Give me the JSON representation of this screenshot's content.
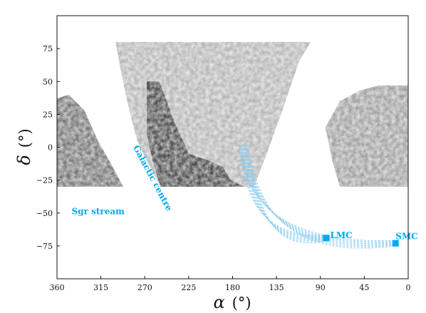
{
  "chart_data": {
    "type": "heatmap",
    "title": "",
    "xlabel": {
      "symbol": "α",
      "unit": "(°)"
    },
    "ylabel": {
      "symbol": "δ",
      "unit": "(°)"
    },
    "xlim": [
      360,
      0
    ],
    "ylim": [
      -100,
      100
    ],
    "x_ticks": [
      "360",
      "315",
      "270",
      "225",
      "180",
      "135",
      "90",
      "45",
      "0"
    ],
    "y_ticks": [
      "75",
      "50",
      "25",
      "0",
      "−25",
      "−50",
      "−75"
    ],
    "grid": false,
    "colors": {
      "density": "#111111",
      "accent": "#00aaee",
      "orbit": "#88ccee"
    },
    "regions": [
      {
        "name": "footprint-left",
        "polygon": [
          [
            360,
            37
          ],
          [
            348,
            40
          ],
          [
            332,
            28
          ],
          [
            318,
            5
          ],
          [
            305,
            -12
          ],
          [
            292,
            -30
          ],
          [
            360,
            -30
          ]
        ],
        "level": 0.65
      },
      {
        "name": "footprint-main",
        "polygon": [
          [
            300,
            80
          ],
          [
            100,
            80
          ],
          [
            112,
            65
          ],
          [
            128,
            30
          ],
          [
            145,
            -5
          ],
          [
            158,
            -30
          ],
          [
            254,
            -30
          ],
          [
            268,
            -10
          ],
          [
            278,
            5
          ],
          [
            288,
            35
          ],
          [
            295,
            60
          ]
        ],
        "level": 0.35
      },
      {
        "name": "dense-band",
        "polygon": [
          [
            268,
            50
          ],
          [
            255,
            50
          ],
          [
            240,
            20
          ],
          [
            225,
            -5
          ],
          [
            205,
            -10
          ],
          [
            190,
            -15
          ],
          [
            182,
            -25
          ],
          [
            168,
            -30
          ],
          [
            254,
            -30
          ],
          [
            262,
            -10
          ],
          [
            268,
            10
          ]
        ],
        "level": 0.85
      },
      {
        "name": "footprint-right",
        "polygon": [
          [
            50,
            43
          ],
          [
            30,
            47
          ],
          [
            0,
            47
          ],
          [
            0,
            -30
          ],
          [
            70,
            -30
          ],
          [
            78,
            -10
          ],
          [
            82,
            5
          ],
          [
            85,
            15
          ],
          [
            70,
            35
          ]
        ],
        "level": 0.45
      }
    ],
    "annotations": [
      {
        "name": "lmc-label",
        "text": "LMC",
        "x": 80,
        "y": -69
      },
      {
        "name": "smc-label",
        "text": "SMC",
        "x": 13,
        "y": -70
      },
      {
        "name": "sgr-stream-label",
        "text": "Sgr stream",
        "x": 345,
        "y": -51
      },
      {
        "name": "galactic-centre-label",
        "text": "Galactic centre",
        "x": 282,
        "y": 0,
        "angle": 62
      }
    ],
    "markers": [
      {
        "name": "lmc-marker",
        "x": 84,
        "y": -69
      },
      {
        "name": "smc-marker",
        "x": 13,
        "y": -73
      }
    ],
    "orbits": [
      {
        "target": "LMC",
        "count": 8,
        "start": [
          169,
          2
        ],
        "end": [
          84,
          -69
        ]
      },
      {
        "target": "SMC",
        "count": 8,
        "start": [
          169,
          2
        ],
        "end": [
          13,
          -73
        ]
      }
    ]
  }
}
